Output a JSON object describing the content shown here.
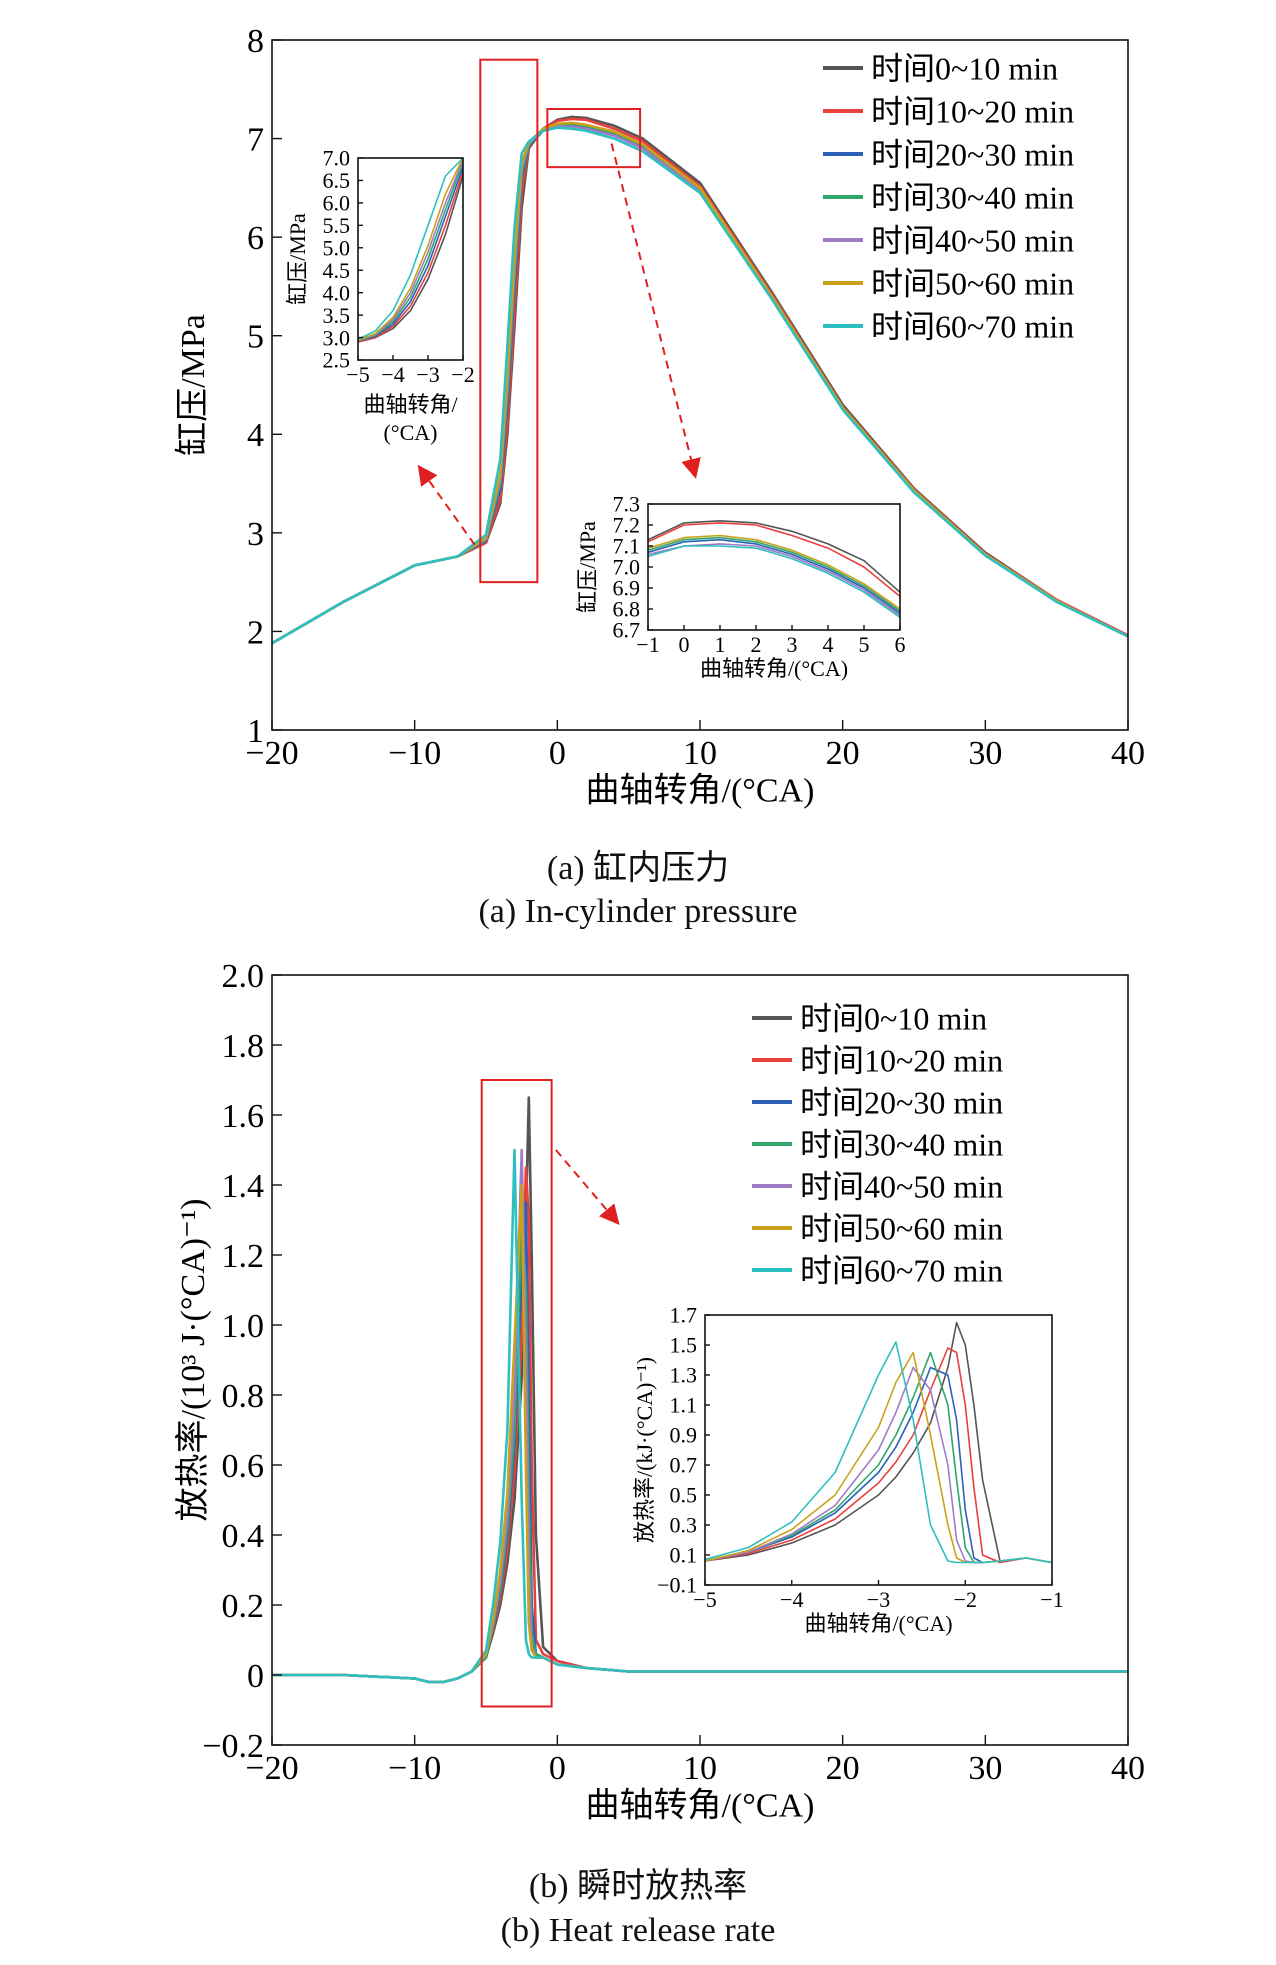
{
  "figure": {
    "caption_a_cn": "(a) 缸内压力",
    "caption_a_en": "(a) In-cylinder pressure",
    "caption_b_cn": "(b) 瞬时放热率",
    "caption_b_en": "(b) Heat release rate"
  },
  "colors": {
    "series": [
      "#555555",
      "#e8413c",
      "#2b62b8",
      "#2fa66a",
      "#a07bc6",
      "#c9a21a",
      "#2ebfc0"
    ],
    "box": "#e02020",
    "arrow": "#e02020"
  },
  "chart_data": [
    {
      "id": "pressure_main",
      "type": "line",
      "title": "",
      "xlabel": "曲轴转角/(°CA)",
      "ylabel": "缸压/MPa",
      "xlim": [
        -20,
        40
      ],
      "ylim": [
        1,
        8
      ],
      "xticks": [
        -20,
        -10,
        0,
        10,
        20,
        30,
        40
      ],
      "yticks": [
        1,
        2,
        3,
        4,
        5,
        6,
        7,
        8
      ],
      "xtick_labels": [
        "−20",
        "−10",
        "0",
        "10",
        "20",
        "30",
        "40"
      ],
      "ytick_labels": [
        "1",
        "2",
        "3",
        "4",
        "5",
        "6",
        "7",
        "8"
      ],
      "legend_position": "top-right",
      "x": [
        -20,
        -15,
        -10,
        -7,
        -5,
        -4,
        -3.5,
        -3,
        -2.5,
        -2,
        -1,
        0,
        1,
        2,
        4,
        6,
        10,
        15,
        20,
        25,
        30,
        35,
        40
      ],
      "series": [
        {
          "name": "时间0~10 min",
          "values": [
            1.88,
            2.3,
            2.67,
            2.76,
            2.9,
            3.3,
            4.0,
            5.1,
            6.3,
            6.9,
            7.1,
            7.19,
            7.22,
            7.21,
            7.13,
            7.0,
            6.55,
            5.45,
            4.3,
            3.45,
            2.8,
            2.32,
            1.96
          ]
        },
        {
          "name": "时间10~20 min",
          "values": [
            1.88,
            2.3,
            2.67,
            2.76,
            2.9,
            3.35,
            4.1,
            5.25,
            6.45,
            6.92,
            7.1,
            7.18,
            7.2,
            7.19,
            7.1,
            6.97,
            6.52,
            5.43,
            4.28,
            3.44,
            2.79,
            2.32,
            1.96
          ]
        },
        {
          "name": "时间20~30 min",
          "values": [
            1.88,
            2.3,
            2.67,
            2.76,
            2.92,
            3.45,
            4.3,
            5.5,
            6.6,
            6.93,
            7.08,
            7.12,
            7.13,
            7.11,
            7.04,
            6.92,
            6.48,
            5.4,
            4.26,
            3.42,
            2.78,
            2.31,
            1.95
          ]
        },
        {
          "name": "时间30~40 min",
          "values": [
            1.88,
            2.3,
            2.67,
            2.76,
            2.93,
            3.5,
            4.4,
            5.6,
            6.65,
            6.94,
            7.09,
            7.14,
            7.15,
            7.13,
            7.06,
            6.93,
            6.49,
            5.41,
            4.27,
            3.43,
            2.78,
            2.31,
            1.95
          ]
        },
        {
          "name": "时间40~50 min",
          "values": [
            1.88,
            2.3,
            2.67,
            2.76,
            2.94,
            3.55,
            4.5,
            5.7,
            6.7,
            6.95,
            7.09,
            7.12,
            7.12,
            7.1,
            7.03,
            6.9,
            6.47,
            5.39,
            4.26,
            3.42,
            2.78,
            2.31,
            1.95
          ]
        },
        {
          "name": "时间50~60 min",
          "values": [
            1.88,
            2.3,
            2.67,
            2.76,
            2.95,
            3.6,
            4.6,
            5.8,
            6.75,
            6.96,
            7.1,
            7.15,
            7.16,
            7.14,
            7.07,
            6.94,
            6.5,
            5.41,
            4.27,
            3.43,
            2.78,
            2.31,
            1.95
          ]
        },
        {
          "name": "时间60~70 min",
          "values": [
            1.88,
            2.3,
            2.67,
            2.76,
            2.98,
            3.75,
            4.9,
            6.1,
            6.85,
            6.97,
            7.08,
            7.11,
            7.1,
            7.08,
            7.0,
            6.87,
            6.45,
            5.38,
            4.25,
            3.41,
            2.77,
            2.3,
            1.95
          ]
        }
      ]
    },
    {
      "id": "pressure_inset_rise",
      "type": "line",
      "xlabel": "曲轴转角/(°CA)",
      "ylabel": "缸压/MPa",
      "xlim": [
        -5,
        -2
      ],
      "ylim": [
        2.5,
        7.0
      ],
      "xticks": [
        -5,
        -4,
        -3,
        -2
      ],
      "xtick_labels": [
        "−5",
        "−4",
        "−3",
        "−2"
      ],
      "yticks": [
        2.5,
        3.0,
        3.5,
        4.0,
        4.5,
        5.0,
        5.5,
        6.0,
        6.5,
        7.0
      ],
      "ytick_labels": [
        "2.5",
        "3.0",
        "3.5",
        "4.0",
        "4.5",
        "5.0",
        "5.5",
        "6.0",
        "6.5",
        "7.0"
      ],
      "x": [
        -5,
        -4.5,
        -4,
        -3.5,
        -3,
        -2.5,
        -2
      ],
      "series": [
        {
          "name": "时间0~10 min",
          "values": [
            2.9,
            3.0,
            3.2,
            3.6,
            4.3,
            5.3,
            6.6
          ]
        },
        {
          "name": "时间10~20 min",
          "values": [
            2.9,
            3.0,
            3.25,
            3.7,
            4.45,
            5.5,
            6.7
          ]
        },
        {
          "name": "时间20~30 min",
          "values": [
            2.92,
            3.03,
            3.3,
            3.8,
            4.6,
            5.7,
            6.8
          ]
        },
        {
          "name": "时间30~40 min",
          "values": [
            2.93,
            3.05,
            3.35,
            3.9,
            4.75,
            5.85,
            6.9
          ]
        },
        {
          "name": "时间40~50 min",
          "values": [
            2.93,
            3.07,
            3.4,
            4.0,
            4.9,
            6.0,
            6.95
          ]
        },
        {
          "name": "时间50~60 min",
          "values": [
            2.94,
            3.09,
            3.45,
            4.1,
            5.05,
            6.2,
            7.0
          ]
        },
        {
          "name": "时间60~70 min",
          "values": [
            2.96,
            3.15,
            3.6,
            4.4,
            5.5,
            6.6,
            7.0
          ]
        }
      ]
    },
    {
      "id": "pressure_inset_peak",
      "type": "line",
      "xlabel": "曲轴转角/(°CA)",
      "ylabel": "缸压/MPa",
      "xlim": [
        -1,
        6
      ],
      "ylim": [
        6.7,
        7.3
      ],
      "xticks": [
        -1,
        0,
        1,
        2,
        3,
        4,
        5,
        6
      ],
      "xtick_labels": [
        "−1",
        "0",
        "1",
        "2",
        "3",
        "4",
        "5",
        "6"
      ],
      "yticks": [
        6.7,
        6.8,
        6.9,
        7.0,
        7.1,
        7.2,
        7.3
      ],
      "ytick_labels": [
        "6.7",
        "6.8",
        "6.9",
        "7.0",
        "7.1",
        "7.2",
        "7.3"
      ],
      "x": [
        -1,
        0,
        1,
        2,
        3,
        4,
        5,
        6
      ],
      "series": [
        {
          "name": "时间0~10 min",
          "values": [
            7.13,
            7.21,
            7.22,
            7.21,
            7.17,
            7.11,
            7.03,
            6.88
          ]
        },
        {
          "name": "时间10~20 min",
          "values": [
            7.12,
            7.2,
            7.21,
            7.2,
            7.15,
            7.09,
            7.0,
            6.86
          ]
        },
        {
          "name": "时间20~30 min",
          "values": [
            7.07,
            7.12,
            7.13,
            7.11,
            7.06,
            6.99,
            6.9,
            6.78
          ]
        },
        {
          "name": "时间30~40 min",
          "values": [
            7.08,
            7.13,
            7.14,
            7.12,
            7.07,
            7.0,
            6.91,
            6.79
          ]
        },
        {
          "name": "时间40~50 min",
          "values": [
            7.06,
            7.1,
            7.11,
            7.1,
            7.05,
            6.98,
            6.89,
            6.77
          ]
        },
        {
          "name": "时间50~60 min",
          "values": [
            7.09,
            7.14,
            7.15,
            7.13,
            7.08,
            7.01,
            6.92,
            6.8
          ]
        },
        {
          "name": "时间60~70 min",
          "values": [
            7.05,
            7.1,
            7.1,
            7.09,
            7.04,
            6.97,
            6.88,
            6.76
          ]
        }
      ]
    },
    {
      "id": "hrr_main",
      "type": "line",
      "title": "",
      "xlabel": "曲轴转角/(°CA)",
      "ylabel": "放热率/(10³ J·(°CA)⁻¹)",
      "xlim": [
        -20,
        40
      ],
      "ylim": [
        -0.2,
        2.0
      ],
      "xticks": [
        -20,
        -10,
        0,
        10,
        20,
        30,
        40
      ],
      "xtick_labels": [
        "−20",
        "−10",
        "0",
        "10",
        "20",
        "30",
        "40"
      ],
      "yticks": [
        -0.2,
        0,
        0.2,
        0.4,
        0.6,
        0.8,
        1.0,
        1.2,
        1.4,
        1.6,
        1.8,
        2.0
      ],
      "ytick_labels": [
        "−0.2",
        "0",
        "0.2",
        "0.4",
        "0.6",
        "0.8",
        "1.0",
        "1.2",
        "1.4",
        "1.6",
        "1.8",
        "2.0"
      ],
      "legend_position": "top-right",
      "x": [
        -20,
        -15,
        -10,
        -9,
        -8,
        -7,
        -6,
        -5,
        -4.5,
        -4,
        -3.5,
        -3,
        -2.5,
        -2.2,
        -2,
        -1.8,
        -1.5,
        -1,
        0,
        2,
        5,
        10,
        20,
        30,
        40
      ],
      "series": [
        {
          "name": "时间0~10 min",
          "values": [
            0.0,
            0.0,
            -0.01,
            -0.02,
            -0.02,
            -0.01,
            0.01,
            0.05,
            0.12,
            0.2,
            0.32,
            0.5,
            0.85,
            1.3,
            1.65,
            1.2,
            0.4,
            0.08,
            0.04,
            0.02,
            0.01,
            0.01,
            0.01,
            0.01,
            0.01
          ]
        },
        {
          "name": "时间10~20 min",
          "values": [
            0.0,
            0.0,
            -0.01,
            -0.02,
            -0.02,
            -0.01,
            0.01,
            0.05,
            0.13,
            0.22,
            0.36,
            0.58,
            0.98,
            1.45,
            1.3,
            0.6,
            0.1,
            0.06,
            0.04,
            0.02,
            0.01,
            0.01,
            0.01,
            0.01,
            0.01
          ]
        },
        {
          "name": "时间20~30 min",
          "values": [
            0.0,
            0.0,
            -0.01,
            -0.02,
            -0.02,
            -0.01,
            0.01,
            0.05,
            0.14,
            0.24,
            0.4,
            0.66,
            1.15,
            1.35,
            0.8,
            0.2,
            0.06,
            0.05,
            0.03,
            0.02,
            0.01,
            0.01,
            0.01,
            0.01,
            0.01
          ]
        },
        {
          "name": "时间30~40 min",
          "values": [
            0.0,
            0.0,
            -0.01,
            -0.02,
            -0.02,
            -0.01,
            0.01,
            0.05,
            0.14,
            0.25,
            0.42,
            0.7,
            1.3,
            1.1,
            0.5,
            0.12,
            0.06,
            0.05,
            0.03,
            0.02,
            0.01,
            0.01,
            0.01,
            0.01,
            0.01
          ]
        },
        {
          "name": "时间40~50 min",
          "values": [
            0.0,
            0.0,
            -0.01,
            -0.02,
            -0.02,
            -0.01,
            0.01,
            0.06,
            0.15,
            0.27,
            0.46,
            0.8,
            1.5,
            0.9,
            0.3,
            0.08,
            0.05,
            0.05,
            0.03,
            0.02,
            0.01,
            0.01,
            0.01,
            0.01,
            0.01
          ]
        },
        {
          "name": "时间50~60 min",
          "values": [
            0.0,
            0.0,
            -0.01,
            -0.02,
            -0.02,
            -0.01,
            0.01,
            0.06,
            0.16,
            0.3,
            0.52,
            0.95,
            1.4,
            0.6,
            0.15,
            0.07,
            0.05,
            0.05,
            0.03,
            0.02,
            0.01,
            0.01,
            0.01,
            0.01,
            0.01
          ]
        },
        {
          "name": "时间60~70 min",
          "values": [
            0.0,
            0.0,
            -0.01,
            -0.02,
            -0.02,
            -0.01,
            0.01,
            0.07,
            0.2,
            0.38,
            0.7,
            1.5,
            0.5,
            0.1,
            0.06,
            0.05,
            0.05,
            0.05,
            0.03,
            0.02,
            0.01,
            0.01,
            0.01,
            0.01,
            0.01
          ]
        }
      ]
    },
    {
      "id": "hrr_inset",
      "type": "line",
      "xlabel": "曲轴转角/(°CA)",
      "ylabel": "放热率/(kJ·(°CA)⁻¹)",
      "xlim": [
        -5,
        -1
      ],
      "ylim": [
        -0.1,
        1.7
      ],
      "xticks": [
        -5,
        -4,
        -3,
        -2,
        -1
      ],
      "xtick_labels": [
        "−5",
        "−4",
        "−3",
        "−2",
        "−1"
      ],
      "yticks": [
        -0.1,
        0.1,
        0.3,
        0.5,
        0.7,
        0.9,
        1.1,
        1.3,
        1.5,
        1.7
      ],
      "ytick_labels": [
        "−0.1",
        "0.1",
        "0.3",
        "0.5",
        "0.7",
        "0.9",
        "1.1",
        "1.3",
        "1.5",
        "1.7"
      ],
      "x": [
        -5,
        -4.5,
        -4,
        -3.5,
        -3,
        -2.8,
        -2.6,
        -2.4,
        -2.2,
        -2.1,
        -2.0,
        -1.9,
        -1.8,
        -1.6,
        -1.3,
        -1
      ],
      "series": [
        {
          "name": "时间0~10 min",
          "values": [
            0.06,
            0.1,
            0.18,
            0.3,
            0.5,
            0.62,
            0.78,
            0.98,
            1.35,
            1.65,
            1.5,
            1.1,
            0.6,
            0.06,
            0.08,
            0.05
          ]
        },
        {
          "name": "时间10~20 min",
          "values": [
            0.06,
            0.11,
            0.2,
            0.34,
            0.58,
            0.72,
            0.9,
            1.2,
            1.48,
            1.45,
            1.1,
            0.55,
            0.1,
            0.05,
            0.08,
            0.05
          ]
        },
        {
          "name": "时间20~30 min",
          "values": [
            0.06,
            0.12,
            0.22,
            0.38,
            0.65,
            0.82,
            1.05,
            1.35,
            1.3,
            1.0,
            0.4,
            0.08,
            0.05,
            0.06,
            0.08,
            0.05
          ]
        },
        {
          "name": "时间30~40 min",
          "values": [
            0.06,
            0.12,
            0.23,
            0.4,
            0.7,
            0.9,
            1.15,
            1.45,
            1.1,
            0.6,
            0.15,
            0.05,
            0.05,
            0.06,
            0.08,
            0.05
          ]
        },
        {
          "name": "时间40~50 min",
          "values": [
            0.06,
            0.12,
            0.24,
            0.43,
            0.8,
            1.05,
            1.35,
            1.2,
            0.7,
            0.2,
            0.06,
            0.05,
            0.05,
            0.06,
            0.08,
            0.05
          ]
        },
        {
          "name": "时间50~60 min",
          "values": [
            0.06,
            0.13,
            0.27,
            0.5,
            0.95,
            1.25,
            1.45,
            0.9,
            0.3,
            0.08,
            0.05,
            0.05,
            0.05,
            0.06,
            0.08,
            0.05
          ]
        },
        {
          "name": "时间60~70 min",
          "values": [
            0.07,
            0.15,
            0.32,
            0.65,
            1.3,
            1.52,
            1.0,
            0.3,
            0.06,
            0.05,
            0.05,
            0.05,
            0.05,
            0.06,
            0.08,
            0.05
          ]
        }
      ]
    }
  ]
}
